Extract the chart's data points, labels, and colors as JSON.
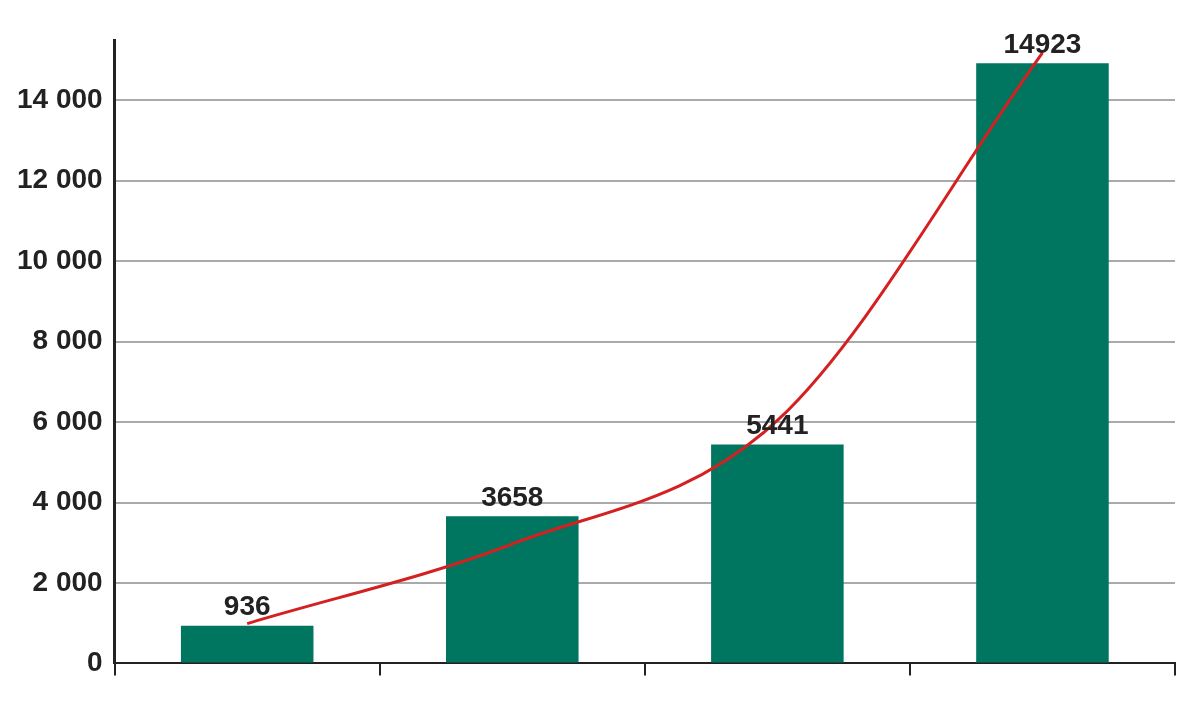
{
  "chart_data": {
    "type": "bar",
    "categories": [
      null,
      null,
      null,
      null
    ],
    "series": [
      {
        "color": "#007560",
        "values": [
          936,
          3658,
          5441,
          14923
        ],
        "value_labels": [
          "936",
          "3658",
          "5441",
          "14923"
        ]
      },
      {
        "type": "line",
        "color": "#d42020",
        "values": [
          990,
          2970,
          6040,
          15180
        ]
      }
    ],
    "ylim": [
      0,
      15500
    ],
    "yticks": [
      {
        "value": 0,
        "label": "0"
      },
      {
        "value": 2000,
        "label": "2 000"
      },
      {
        "value": 4000,
        "label": "4 000"
      },
      {
        "value": 6000,
        "label": "6 000"
      },
      {
        "value": 8000,
        "label": "8 000"
      },
      {
        "value": 10000,
        "label": "10 000"
      },
      {
        "value": 12000,
        "label": "12 000"
      },
      {
        "value": 14000,
        "label": "14 000"
      }
    ],
    "grid": "y",
    "legend": false,
    "marker": "none"
  }
}
